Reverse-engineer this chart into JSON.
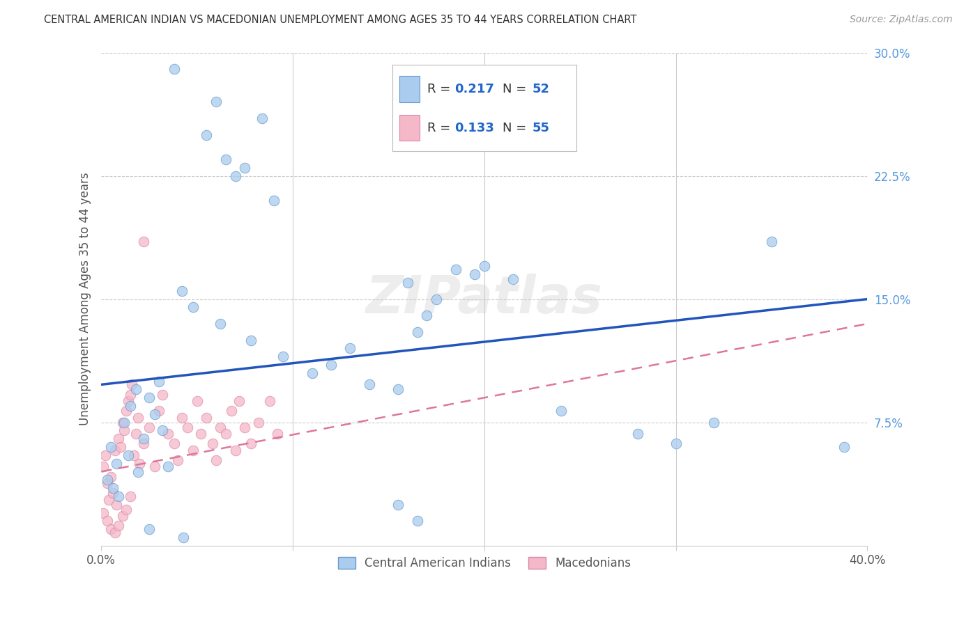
{
  "title": "CENTRAL AMERICAN INDIAN VS MACEDONIAN UNEMPLOYMENT AMONG AGES 35 TO 44 YEARS CORRELATION CHART",
  "source": "Source: ZipAtlas.com",
  "ylabel": "Unemployment Among Ages 35 to 44 years",
  "xlim": [
    0.0,
    0.4
  ],
  "ylim": [
    0.0,
    0.3
  ],
  "blue_color": "#aaccee",
  "pink_color": "#f4b8c8",
  "blue_edge_color": "#6699cc",
  "pink_edge_color": "#dd88aa",
  "blue_line_color": "#2255bb",
  "pink_line_color": "#dd7799",
  "legend_r1": "0.217",
  "legend_n1": "52",
  "legend_r2": "0.133",
  "legend_n2": "55",
  "legend_value_color": "#2266cc",
  "legend_label_color": "#333333",
  "watermark": "ZIPatlas",
  "grid_color": "#cccccc",
  "title_color": "#333333",
  "source_color": "#999999",
  "tick_label_color": "#555555",
  "right_tick_color": "#5599dd",
  "blue_line_y0": 0.098,
  "blue_line_y1": 0.15,
  "pink_line_y0": 0.045,
  "pink_line_y1": 0.135,
  "blue_scatter_x": [
    0.038,
    0.06,
    0.084,
    0.055,
    0.065,
    0.075,
    0.07,
    0.09,
    0.005,
    0.008,
    0.012,
    0.015,
    0.018,
    0.022,
    0.028,
    0.032,
    0.003,
    0.006,
    0.009,
    0.014,
    0.019,
    0.025,
    0.03,
    0.035,
    0.042,
    0.048,
    0.062,
    0.078,
    0.095,
    0.11,
    0.12,
    0.13,
    0.14,
    0.155,
    0.16,
    0.165,
    0.17,
    0.175,
    0.185,
    0.195,
    0.2,
    0.215,
    0.24,
    0.28,
    0.3,
    0.32,
    0.35,
    0.388,
    0.155,
    0.165,
    0.025,
    0.043
  ],
  "blue_scatter_y": [
    0.29,
    0.27,
    0.26,
    0.25,
    0.235,
    0.23,
    0.225,
    0.21,
    0.06,
    0.05,
    0.075,
    0.085,
    0.095,
    0.065,
    0.08,
    0.07,
    0.04,
    0.035,
    0.03,
    0.055,
    0.045,
    0.09,
    0.1,
    0.048,
    0.155,
    0.145,
    0.135,
    0.125,
    0.115,
    0.105,
    0.11,
    0.12,
    0.098,
    0.095,
    0.16,
    0.13,
    0.14,
    0.15,
    0.168,
    0.165,
    0.17,
    0.162,
    0.082,
    0.068,
    0.062,
    0.075,
    0.185,
    0.06,
    0.025,
    0.015,
    0.01,
    0.005
  ],
  "pink_scatter_x": [
    0.001,
    0.002,
    0.003,
    0.004,
    0.005,
    0.006,
    0.007,
    0.008,
    0.009,
    0.01,
    0.011,
    0.012,
    0.013,
    0.014,
    0.015,
    0.016,
    0.017,
    0.018,
    0.019,
    0.02,
    0.001,
    0.003,
    0.005,
    0.007,
    0.009,
    0.011,
    0.013,
    0.015,
    0.022,
    0.025,
    0.028,
    0.03,
    0.032,
    0.035,
    0.038,
    0.04,
    0.042,
    0.045,
    0.048,
    0.05,
    0.052,
    0.055,
    0.058,
    0.06,
    0.062,
    0.065,
    0.068,
    0.07,
    0.072,
    0.075,
    0.078,
    0.082,
    0.088,
    0.092,
    0.022
  ],
  "pink_scatter_y": [
    0.048,
    0.055,
    0.038,
    0.028,
    0.042,
    0.032,
    0.058,
    0.025,
    0.065,
    0.06,
    0.075,
    0.07,
    0.082,
    0.088,
    0.092,
    0.098,
    0.055,
    0.068,
    0.078,
    0.05,
    0.02,
    0.015,
    0.01,
    0.008,
    0.012,
    0.018,
    0.022,
    0.03,
    0.062,
    0.072,
    0.048,
    0.082,
    0.092,
    0.068,
    0.062,
    0.052,
    0.078,
    0.072,
    0.058,
    0.088,
    0.068,
    0.078,
    0.062,
    0.052,
    0.072,
    0.068,
    0.082,
    0.058,
    0.088,
    0.072,
    0.062,
    0.075,
    0.088,
    0.068,
    0.185
  ]
}
